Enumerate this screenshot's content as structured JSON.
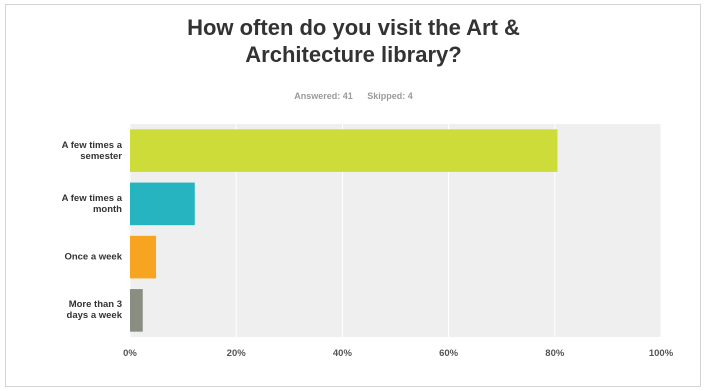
{
  "chart_data": {
    "type": "bar",
    "orientation": "horizontal",
    "title": "How often do you visit the Art &\nArchitecture library?",
    "answered_label": "Answered: 41",
    "skipped_label": "Skipped: 4",
    "categories": [
      "A few times a\nsemester",
      "A few times a\nmonth",
      "Once a week",
      "More than 3\ndays a week"
    ],
    "values": [
      80.5,
      12.2,
      4.9,
      2.4
    ],
    "unit": "%",
    "xlim": [
      0,
      100
    ],
    "xticks": [
      "0%",
      "20%",
      "40%",
      "60%",
      "80%",
      "100%"
    ],
    "colors": [
      "#cddc39",
      "#26b5c0",
      "#f7a520",
      "#8a8d82"
    ],
    "grid": true,
    "legend": "none"
  }
}
